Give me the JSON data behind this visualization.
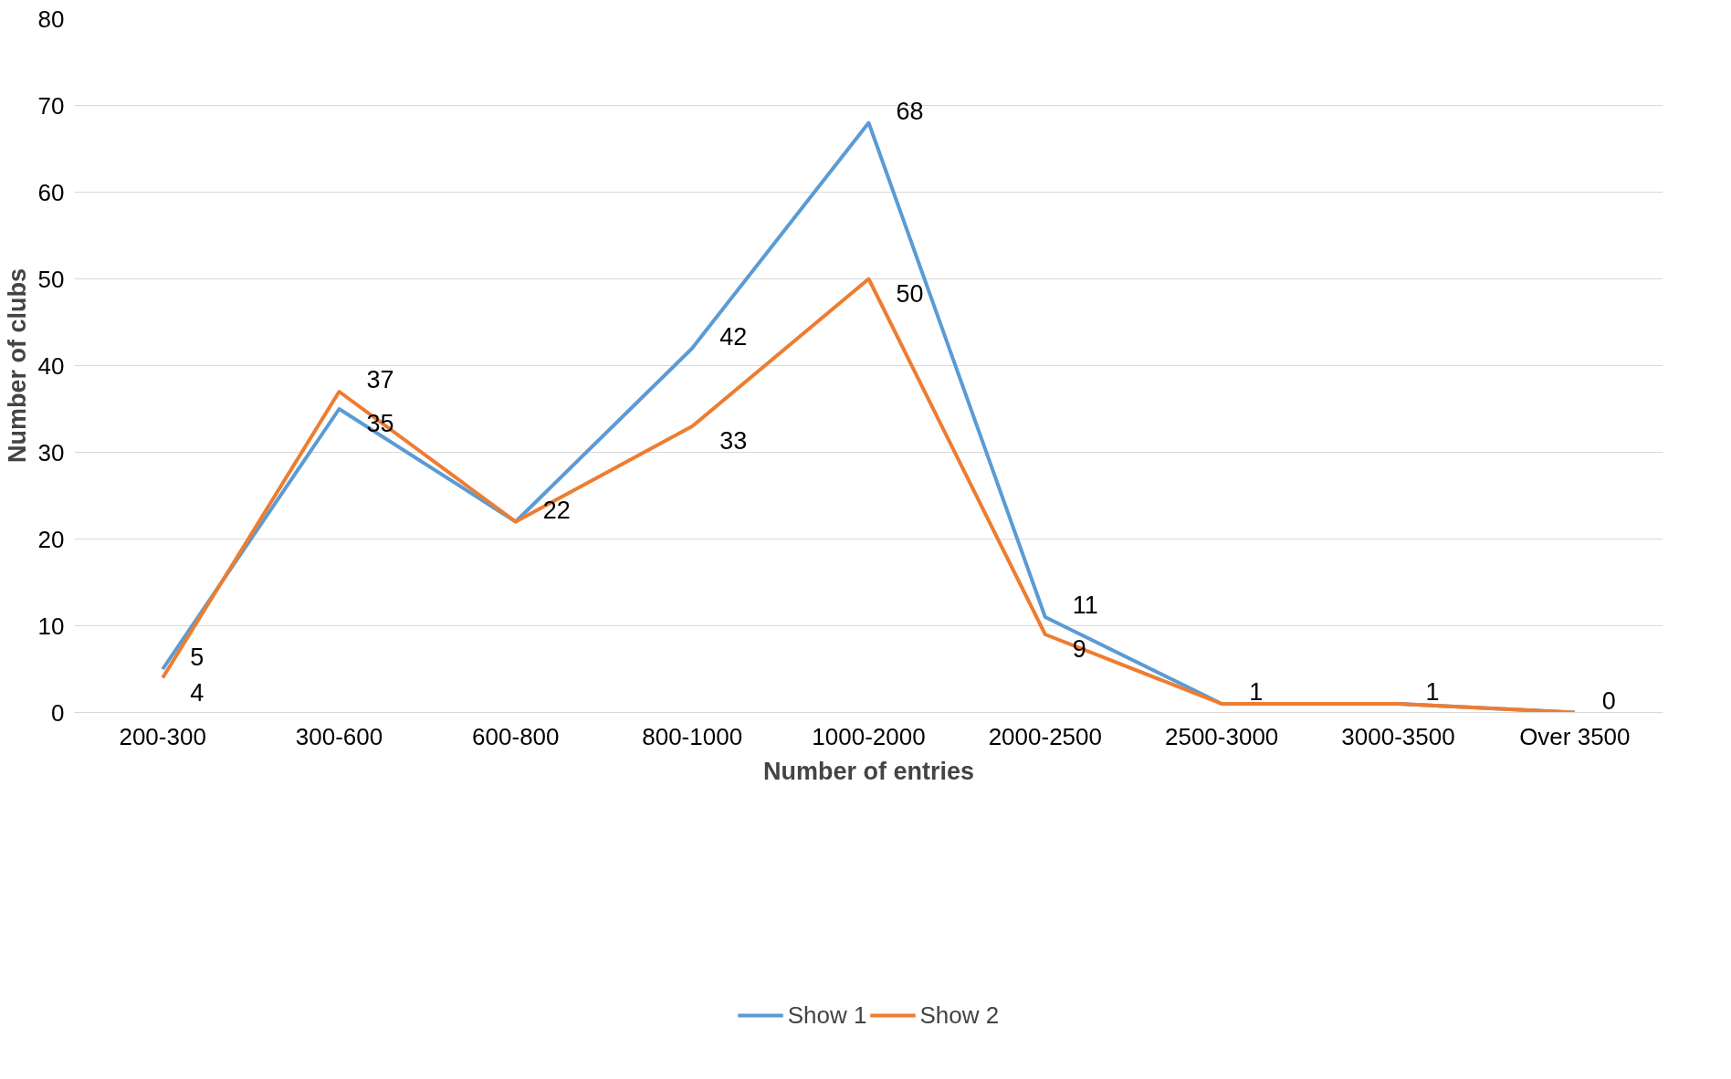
{
  "chart_data": {
    "type": "line",
    "xlabel": "Number of entries",
    "ylabel": "Number of clubs",
    "categories": [
      "200-300",
      "300-600",
      "600-800",
      "800-1000",
      "1000-2000",
      "2000-2500",
      "2500-3000",
      "3000-3500",
      "Over 3500"
    ],
    "series": [
      {
        "name": "Show 1",
        "color": "#5b9bd5",
        "values": [
          5,
          35,
          22,
          42,
          68,
          11,
          1,
          1,
          0
        ],
        "value_labels": [
          "5",
          "35",
          "22",
          "42",
          "68",
          "11",
          "1",
          "1",
          "0"
        ]
      },
      {
        "name": "Show 2",
        "color": "#ed7d31",
        "values": [
          4,
          37,
          22,
          33,
          50,
          9,
          1,
          1,
          0
        ],
        "value_labels": [
          "4",
          "37",
          null,
          "33",
          "50",
          "9",
          null,
          null,
          null
        ]
      }
    ],
    "ylim": [
      0,
      80
    ],
    "yticks": [
      0,
      10,
      20,
      30,
      40,
      50,
      60,
      70,
      80
    ],
    "grid": "y",
    "legend": "bottom",
    "marker": "none",
    "line_style": "solid"
  }
}
